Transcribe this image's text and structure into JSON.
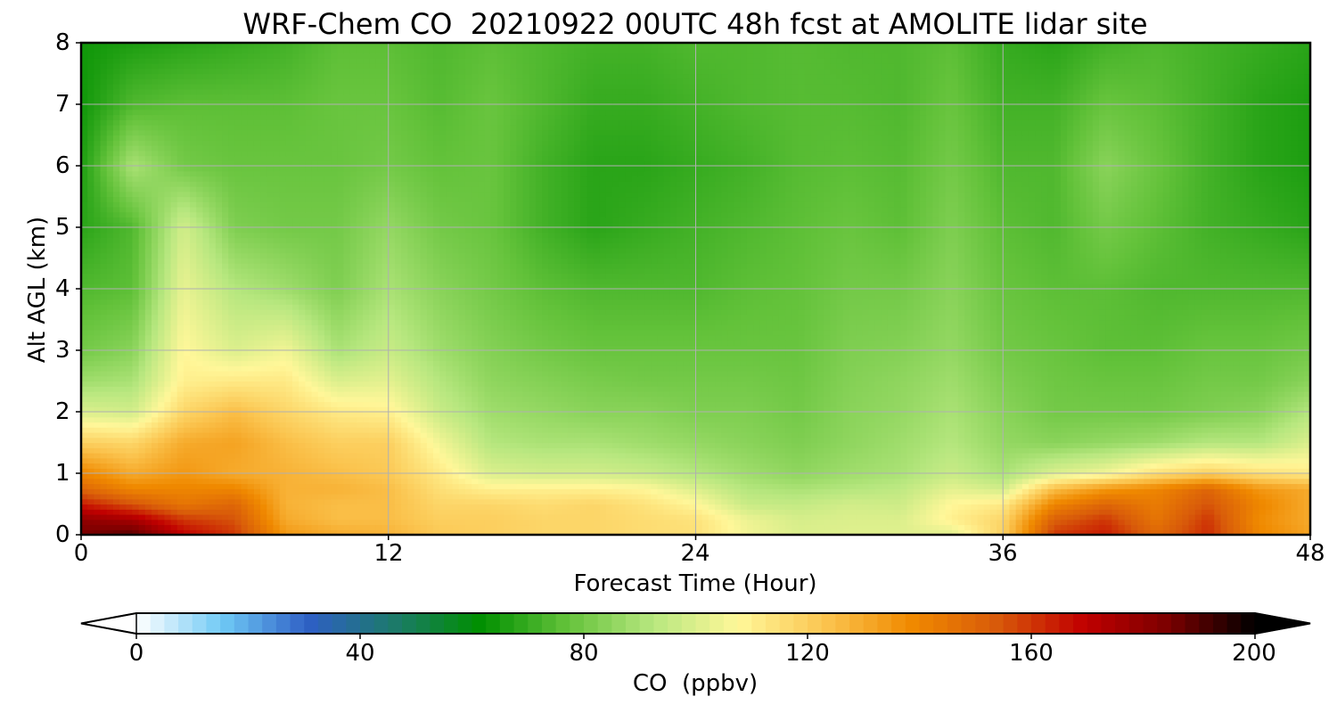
{
  "chart_data": [
    {
      "type": "heatmap",
      "title": "WRF-Chem CO  20210922 00UTC 48h fcst at AMOLITE lidar site",
      "xlabel": "Forecast Time (Hour)",
      "ylabel": "Alt AGL (km)",
      "xlim": [
        0,
        48
      ],
      "ylim": [
        0,
        8
      ],
      "x_ticks": [
        "0",
        "12",
        "24",
        "36",
        "48"
      ],
      "y_ticks": [
        "0",
        "1",
        "2",
        "3",
        "4",
        "5",
        "6",
        "7",
        "8"
      ],
      "grid": true,
      "x_hours": [
        0,
        2,
        4,
        6,
        8,
        10,
        12,
        14,
        16,
        18,
        20,
        22,
        24,
        26,
        28,
        30,
        32,
        34,
        36,
        38,
        40,
        42,
        44,
        46,
        48
      ],
      "y_km": [
        0,
        0.25,
        0.5,
        0.75,
        1,
        1.5,
        2,
        2.5,
        3,
        4,
        5,
        6,
        7,
        8
      ],
      "z_ppbv": [
        [
          185,
          190,
          170,
          160,
          135,
          130,
          128,
          122,
          120,
          118,
          118,
          116,
          115,
          105,
          100,
          101,
          101,
          101,
          120,
          160,
          165,
          150,
          162,
          140,
          132
        ],
        [
          180,
          175,
          160,
          155,
          130,
          125,
          125,
          120,
          120,
          118,
          118,
          116,
          114,
          104,
          99,
          100,
          100,
          110,
          118,
          152,
          160,
          145,
          160,
          138,
          130
        ],
        [
          165,
          155,
          145,
          150,
          128,
          125,
          125,
          118,
          118,
          116,
          118,
          114,
          108,
          96,
          95,
          98,
          97,
          108,
          112,
          140,
          150,
          143,
          155,
          140,
          130
        ],
        [
          150,
          140,
          140,
          140,
          128,
          128,
          125,
          115,
          110,
          110,
          110,
          108,
          100,
          92,
          90,
          92,
          94,
          102,
          98,
          125,
          135,
          140,
          150,
          135,
          130
        ],
        [
          140,
          130,
          135,
          130,
          128,
          125,
          122,
          112,
          100,
          98,
          98,
          96,
          92,
          88,
          85,
          88,
          90,
          96,
          90,
          100,
          105,
          115,
          120,
          115,
          112
        ],
        [
          120,
          118,
          130,
          132,
          125,
          120,
          120,
          105,
          92,
          90,
          90,
          88,
          86,
          84,
          82,
          85,
          88,
          92,
          86,
          84,
          86,
          88,
          92,
          92,
          100
        ],
        [
          100,
          98,
          118,
          125,
          118,
          112,
          110,
          96,
          88,
          86,
          84,
          84,
          82,
          82,
          80,
          84,
          86,
          90,
          84,
          80,
          80,
          80,
          82,
          84,
          92
        ],
        [
          88,
          90,
          110,
          112,
          112,
          100,
          102,
          92,
          85,
          83,
          81,
          80,
          80,
          80,
          79,
          83,
          85,
          88,
          82,
          79,
          78,
          78,
          80,
          80,
          84
        ],
        [
          80,
          84,
          108,
          100,
          105,
          90,
          96,
          88,
          83,
          80,
          78,
          78,
          78,
          78,
          78,
          82,
          83,
          86,
          80,
          78,
          76,
          76,
          78,
          78,
          80
        ],
        [
          74,
          76,
          103,
          92,
          88,
          82,
          90,
          84,
          80,
          76,
          74,
          74,
          74,
          76,
          77,
          80,
          80,
          84,
          78,
          76,
          76,
          74,
          74,
          74,
          74
        ],
        [
          68,
          74,
          98,
          82,
          80,
          80,
          86,
          80,
          78,
          72,
          68,
          70,
          72,
          74,
          76,
          78,
          76,
          82,
          76,
          74,
          80,
          76,
          72,
          70,
          68
        ],
        [
          66,
          90,
          80,
          78,
          78,
          78,
          80,
          77,
          78,
          72,
          68,
          68,
          70,
          72,
          75,
          76,
          75,
          80,
          74,
          74,
          84,
          78,
          72,
          68,
          66
        ],
        [
          64,
          74,
          76,
          76,
          76,
          78,
          78,
          75,
          78,
          74,
          70,
          70,
          72,
          74,
          75,
          75,
          74,
          78,
          72,
          72,
          78,
          76,
          72,
          68,
          66
        ],
        [
          64,
          66,
          68,
          70,
          72,
          76,
          76,
          74,
          76,
          74,
          72,
          72,
          74,
          74,
          75,
          74,
          74,
          76,
          70,
          68,
          72,
          74,
          72,
          70,
          68
        ]
      ]
    },
    {
      "type": "colorbar",
      "label": "CO  (ppbv)",
      "range": [
        0,
        200
      ],
      "ticks": [
        "0",
        "40",
        "80",
        "120",
        "160",
        "200"
      ],
      "colors": [
        "#ffffff",
        "#6fc9f5",
        "#2e5fc5",
        "#1c7a6a",
        "#008f00",
        "#63c23a",
        "#b7e77f",
        "#fff799",
        "#fbc550",
        "#f08a00",
        "#d85a0a",
        "#c10000",
        "#7a0000",
        "#000000"
      ]
    }
  ]
}
